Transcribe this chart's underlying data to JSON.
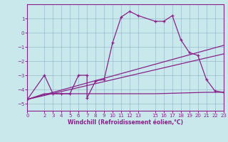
{
  "xlabel": "Windchill (Refroidissement éolien,°C)",
  "bg_color": "#c8e8ec",
  "line_color": "#882288",
  "grid_color": "#99bbcc",
  "xlim": [
    0,
    23
  ],
  "ylim": [
    -5.5,
    2.0
  ],
  "yticks": [
    1,
    0,
    -1,
    -2,
    -3,
    -4,
    -5
  ],
  "xticks": [
    0,
    2,
    3,
    4,
    5,
    6,
    7,
    8,
    9,
    10,
    11,
    12,
    13,
    15,
    16,
    17,
    18,
    19,
    20,
    21,
    22,
    23
  ],
  "series_marker": {
    "x": [
      0,
      2,
      3,
      4,
      5,
      6,
      7,
      7,
      8,
      9,
      10,
      11,
      12,
      13,
      15,
      16,
      17,
      18,
      19,
      20,
      21,
      22,
      23
    ],
    "y": [
      -4.7,
      -3.0,
      -4.3,
      -4.3,
      -4.3,
      -3.0,
      -3.0,
      -4.6,
      -3.4,
      -3.3,
      -0.7,
      1.1,
      1.5,
      1.2,
      0.8,
      0.8,
      1.2,
      -0.5,
      -1.4,
      -1.6,
      -3.3,
      -4.1,
      -4.2
    ]
  },
  "series_flat": {
    "x": [
      0,
      2,
      3,
      4,
      5,
      13,
      15,
      21,
      22,
      23
    ],
    "y": [
      -4.7,
      -4.3,
      -4.3,
      -4.3,
      -4.3,
      -4.3,
      -4.3,
      -4.2,
      -4.2,
      -4.2
    ]
  },
  "series_diag1": {
    "x": [
      0,
      23
    ],
    "y": [
      -4.7,
      -0.9
    ]
  },
  "series_diag2": {
    "x": [
      0,
      23
    ],
    "y": [
      -4.7,
      -1.5
    ]
  }
}
